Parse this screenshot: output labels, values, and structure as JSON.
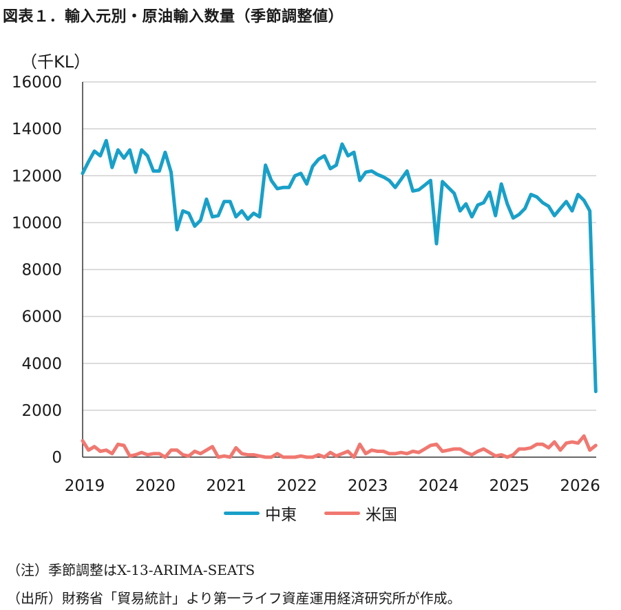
{
  "chart_data": {
    "type": "line",
    "title": "図表１．輸入元別・原油輸入数量（季節調整値）",
    "ylabel": "（千KL）",
    "xlabel": "",
    "ylim": [
      0,
      16000
    ],
    "yticks": [
      "16000",
      "14000",
      "12000",
      "10000",
      "8000",
      "6000",
      "4000",
      "2000",
      "0"
    ],
    "xticks": [
      "2019",
      "2020",
      "2021",
      "2022",
      "2023",
      "2024",
      "2025",
      "2026"
    ],
    "grid": true,
    "legend": "bottom",
    "series": [
      {
        "name": "中東",
        "color": "#19a0c8",
        "values": [
          12100,
          12600,
          13050,
          12850,
          13500,
          12350,
          13100,
          12750,
          13100,
          12150,
          13100,
          12850,
          12200,
          12200,
          13000,
          12150,
          9700,
          10500,
          10400,
          9850,
          10100,
          11000,
          10250,
          10300,
          10900,
          10900,
          10250,
          10500,
          10150,
          10400,
          10250,
          12450,
          11800,
          11450,
          11500,
          11500,
          12000,
          12100,
          11650,
          12400,
          12700,
          12850,
          12300,
          12450,
          13350,
          12850,
          13000,
          11800,
          12150,
          12200,
          12050,
          11950,
          11800,
          11500,
          11850,
          12200,
          11350,
          11400,
          11600,
          11800,
          9100,
          11750,
          11500,
          11250,
          10500,
          10800,
          10250,
          10750,
          10850,
          11300,
          10300,
          11650,
          10800,
          10200,
          10350,
          10600,
          11200,
          11100,
          10850,
          10700,
          10300,
          10600,
          10900,
          10500,
          11200,
          10950,
          10500,
          2800
        ]
      },
      {
        "name": "米国",
        "color": "#f07870",
        "values": [
          700,
          300,
          450,
          250,
          300,
          150,
          550,
          500,
          50,
          100,
          200,
          100,
          150,
          150,
          0,
          300,
          300,
          100,
          50,
          250,
          150,
          300,
          450,
          0,
          50,
          0,
          400,
          150,
          100,
          100,
          50,
          0,
          0,
          150,
          0,
          0,
          0,
          50,
          0,
          0,
          100,
          0,
          200,
          50,
          150,
          250,
          0,
          550,
          150,
          300,
          250,
          250,
          150,
          150,
          200,
          150,
          250,
          200,
          350,
          500,
          550,
          250,
          300,
          350,
          350,
          200,
          100,
          250,
          350,
          200,
          50,
          100,
          0,
          100,
          350,
          350,
          400,
          550,
          550,
          400,
          650,
          300,
          600,
          650,
          600,
          900,
          300,
          500
        ]
      }
    ]
  },
  "notes": {
    "note1": "（注）季節調整はX-13-ARIMA-SEATS",
    "note2": "（出所）財務省「貿易統計」より第一ライフ資産運用経済研究所が作成。"
  }
}
